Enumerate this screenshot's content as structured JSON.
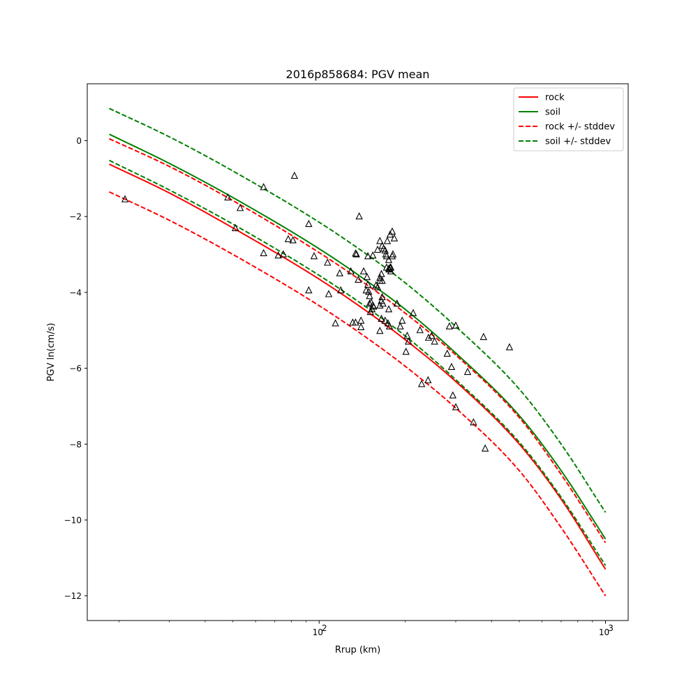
{
  "chart_data": {
    "type": "scatter",
    "title": "2016p858684: PGV mean",
    "xlabel": "Rrup (km)",
    "ylabel": "PGV ln(cm/s)",
    "xscale": "log",
    "xlim": [
      15.5,
      1200
    ],
    "ylim": [
      -12.65,
      1.5
    ],
    "yticks": [
      0,
      -2,
      -4,
      -6,
      -8,
      -10,
      -12
    ],
    "xticks_major": [
      {
        "value": 100,
        "base": "10",
        "exp": "2"
      },
      {
        "value": 1000,
        "base": "10",
        "exp": "3"
      }
    ],
    "xticks_minor": [
      20,
      30,
      40,
      50,
      60,
      70,
      80,
      90,
      200,
      300,
      400,
      500,
      600,
      700,
      800,
      900
    ],
    "grid": false,
    "legend_position": "top-right",
    "series": [
      {
        "name": "rock",
        "style": "solid",
        "color": "#ff0000",
        "x": [
          18.5,
          30,
          50,
          100,
          150,
          200,
          300,
          500,
          700,
          1000
        ],
        "y": [
          -0.62,
          -1.38,
          -2.3,
          -3.65,
          -4.55,
          -5.25,
          -6.35,
          -8.0,
          -9.45,
          -11.3
        ]
      },
      {
        "name": "soil",
        "style": "solid",
        "color": "#008000",
        "x": [
          18.5,
          30,
          50,
          100,
          150,
          200,
          300,
          500,
          700,
          1000
        ],
        "y": [
          0.17,
          -0.6,
          -1.5,
          -2.85,
          -3.75,
          -4.45,
          -5.6,
          -7.25,
          -8.7,
          -10.5
        ]
      },
      {
        "name": "rock +/- stddev",
        "style": "dashed",
        "color": "#ff0000",
        "x": [
          18.5,
          30,
          50,
          100,
          150,
          200,
          300,
          500,
          700,
          1000
        ],
        "y": [
          0.05,
          -0.68,
          -1.58,
          -2.95,
          -3.85,
          -4.55,
          -5.65,
          -7.3,
          -8.8,
          -10.6
        ]
      },
      {
        "name": "",
        "style": "dashed",
        "color": "#ff0000",
        "x": [
          18.5,
          30,
          50,
          100,
          150,
          200,
          300,
          500,
          700,
          1000
        ],
        "y": [
          -1.35,
          -2.1,
          -3.0,
          -4.35,
          -5.25,
          -5.95,
          -7.05,
          -8.7,
          -10.2,
          -12.0
        ]
      },
      {
        "name": "soil +/- stddev",
        "style": "dashed",
        "color": "#008000",
        "x": [
          18.5,
          30,
          50,
          100,
          150,
          200,
          300,
          500,
          700,
          1000
        ],
        "y": [
          0.85,
          0.1,
          -0.8,
          -2.15,
          -3.05,
          -3.75,
          -4.9,
          -6.55,
          -8.0,
          -9.8
        ]
      },
      {
        "name": "",
        "style": "dashed",
        "color": "#008000",
        "x": [
          18.5,
          30,
          50,
          100,
          150,
          200,
          300,
          500,
          700,
          1000
        ],
        "y": [
          -0.52,
          -1.3,
          -2.2,
          -3.55,
          -4.45,
          -5.15,
          -6.3,
          -7.95,
          -9.4,
          -11.2
        ]
      }
    ],
    "points": {
      "marker": "triangle",
      "x": [
        21,
        48,
        53,
        64,
        82,
        51,
        64,
        92,
        78,
        81,
        72,
        75,
        96,
        92,
        108,
        107,
        119,
        114,
        118,
        131,
        134,
        140,
        135,
        143,
        137,
        147,
        148,
        150,
        149,
        146,
        150,
        152,
        154,
        155,
        153,
        151,
        158,
        160,
        163,
        165,
        163,
        166,
        163,
        165,
        167,
        165,
        170,
        172,
        175,
        177,
        178,
        175,
        174,
        176,
        173,
        180,
        177,
        183,
        163,
        166,
        168,
        170,
        171,
        172,
        175,
        176,
        178,
        181,
        187,
        192,
        195,
        201,
        203,
        205,
        213,
        225,
        228,
        240,
        241,
        247,
        253,
        280,
        285,
        290,
        293,
        300,
        300,
        330,
        346,
        375,
        380,
        462,
        134,
        138,
        129,
        140,
        148,
        154,
        160,
        163,
        166,
        180
      ],
      "y": [
        -1.55,
        -1.5,
        -1.78,
        -1.23,
        -0.93,
        -2.31,
        -2.97,
        -2.2,
        -2.6,
        -2.63,
        -3.03,
        -3.0,
        -3.05,
        -3.95,
        -4.05,
        -3.22,
        -3.95,
        -4.82,
        -3.5,
        -4.8,
        -4.8,
        -4.92,
        -3.0,
        -3.45,
        -3.67,
        -3.6,
        -3.8,
        -4.1,
        -3.99,
        -3.95,
        -4.3,
        -4.27,
        -4.35,
        -4.38,
        -4.45,
        -4.52,
        -3.82,
        -3.87,
        -3.7,
        -3.52,
        -4.35,
        -4.13,
        -5.02,
        -4.23,
        -4.3,
        -4.7,
        -4.75,
        -3.35,
        -3.38,
        -3.35,
        -3.45,
        -4.45,
        -4.82,
        -4.9,
        -2.65,
        -2.4,
        -2.48,
        -2.58,
        -2.65,
        -2.78,
        -2.85,
        -2.9,
        -3.0,
        -3.05,
        -3.15,
        -3.4,
        -3.35,
        -3.0,
        -4.3,
        -4.9,
        -4.75,
        -5.57,
        -5.15,
        -5.3,
        -4.55,
        -5.0,
        -6.42,
        -6.32,
        -5.2,
        -5.15,
        -5.3,
        -5.62,
        -4.9,
        -5.97,
        -6.72,
        -4.88,
        -7.03,
        -6.1,
        -7.43,
        -5.18,
        -8.12,
        -5.45,
        -2.98,
        -2.0,
        -3.45,
        -4.75,
        -3.05,
        -3.03,
        -2.88,
        -3.62,
        -3.7,
        -3.05
      ]
    }
  }
}
